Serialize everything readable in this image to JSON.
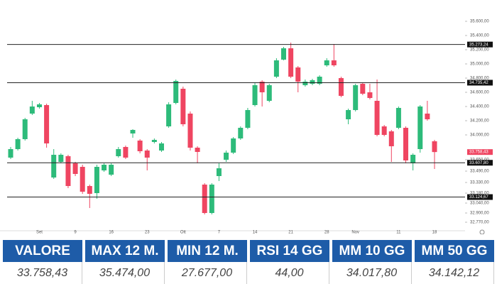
{
  "chart_data": {
    "type": "candlestick",
    "categories": [
      null,
      null,
      null,
      null,
      "Set",
      null,
      null,
      null,
      null,
      "9",
      null,
      null,
      null,
      null,
      "16",
      null,
      null,
      null,
      null,
      "23",
      null,
      null,
      null,
      null,
      "Ott",
      null,
      null,
      null,
      null,
      "7",
      null,
      null,
      null,
      null,
      "14",
      null,
      null,
      null,
      null,
      "21",
      null,
      null,
      null,
      null,
      "28",
      null,
      null,
      null,
      "Nov",
      null,
      null,
      null,
      null,
      null,
      "11",
      null,
      null,
      null,
      null,
      "18"
    ],
    "open": [
      33680,
      33800,
      33940,
      34300,
      34390,
      34420,
      33400,
      33620,
      33700,
      33600,
      33550,
      33280,
      33180,
      33500,
      33440,
      33700,
      33830,
      34020,
      33920,
      33780,
      33900,
      33780,
      34120,
      34450,
      34650,
      34300,
      33820,
      33300,
      32900,
      33420,
      33650,
      33750,
      33950,
      34100,
      34420,
      34750,
      34480,
      34820,
      35060,
      35220,
      34950,
      34700,
      34720,
      34720,
      34980,
      35050,
      34800,
      34220,
      34350,
      34720,
      34600,
      34480,
      34120,
      34050,
      34100,
      34100,
      33600,
      33800,
      34300,
      33910
    ],
    "high": [
      33830,
      33960,
      34240,
      34480,
      34450,
      34440,
      33800,
      33740,
      33720,
      33620,
      33580,
      33300,
      33580,
      33600,
      33600,
      33830,
      33850,
      34080,
      33940,
      33800,
      33950,
      33900,
      34460,
      34780,
      34680,
      34330,
      33840,
      33320,
      33320,
      33600,
      33780,
      33970,
      34120,
      34380,
      34730,
      34770,
      34720,
      35080,
      35240,
      35300,
      34970,
      34780,
      34790,
      34840,
      35080,
      35280,
      34820,
      34370,
      34720,
      34740,
      34720,
      34780,
      34140,
      34070,
      34400,
      34120,
      33740,
      34420,
      34480,
      33930
    ],
    "low": [
      33660,
      33780,
      33920,
      34280,
      34370,
      33820,
      33380,
      33600,
      33250,
      33420,
      33170,
      32970,
      33100,
      33480,
      33420,
      33680,
      33660,
      33960,
      33740,
      33500,
      33880,
      33760,
      34100,
      34430,
      34120,
      33780,
      33600,
      32880,
      32880,
      33350,
      33620,
      33730,
      33930,
      34080,
      34400,
      34400,
      34460,
      34800,
      35050,
      34800,
      34600,
      34680,
      34700,
      34700,
      34960,
      34960,
      34530,
      34150,
      34330,
      34560,
      34500,
      33980,
      33980,
      33620,
      34080,
      33600,
      33500,
      33750,
      34200,
      33520
    ],
    "close": [
      33800,
      33940,
      34220,
      34400,
      34430,
      33880,
      33720,
      33720,
      33280,
      33450,
      33200,
      33170,
      33550,
      33580,
      33580,
      33800,
      33680,
      34070,
      33770,
      33680,
      33930,
      33880,
      34430,
      34760,
      34150,
      33820,
      33760,
      32900,
      33300,
      33530,
      33750,
      33950,
      34100,
      34350,
      34700,
      34600,
      34700,
      35050,
      35220,
      34820,
      34750,
      34750,
      34770,
      34820,
      35050,
      34980,
      34550,
      34350,
      34700,
      34580,
      34520,
      34000,
      34000,
      33840,
      34380,
      33640,
      33720,
      34400,
      34220,
      33758.43
    ],
    "up_color": "#2dbb7a",
    "down_color": "#ef4561",
    "ylim": [
      32650,
      35900
    ],
    "yticks": [
      {
        "value": 35600,
        "label": "35.600,00"
      },
      {
        "value": 35400,
        "label": "35.400,00"
      },
      {
        "value": 35200,
        "label": "35.200,00"
      },
      {
        "value": 35000,
        "label": "35.000,00"
      },
      {
        "value": 34800,
        "label": "34.800,00"
      },
      {
        "value": 34600,
        "label": "34.600,00"
      },
      {
        "value": 34400,
        "label": "34.400,00"
      },
      {
        "value": 34200,
        "label": "34.200,00"
      },
      {
        "value": 34000,
        "label": "34.000,00"
      },
      {
        "value": 33650,
        "label": "33.650,00"
      },
      {
        "value": 33490,
        "label": "33.490,00"
      },
      {
        "value": 33330,
        "label": "33.330,00"
      },
      {
        "value": 33180,
        "label": "33.180,00"
      },
      {
        "value": 33040,
        "label": "33.040,00"
      },
      {
        "value": 32900,
        "label": "32.900,00"
      },
      {
        "value": 32770,
        "label": "32.770,00"
      }
    ],
    "levels": [
      {
        "value": 35273.24,
        "label": "35.273,24"
      },
      {
        "value": 34735.42,
        "label": "34.735,42"
      },
      {
        "value": 33607.8,
        "label": "33.607,80"
      },
      {
        "value": 33124.67,
        "label": "33.124,67"
      }
    ],
    "last_price": {
      "value": 33758.43,
      "label": "33.758,43"
    }
  },
  "table": {
    "headers": [
      "VALORE",
      "MAX 12 M.",
      "MIN 12 M.",
      "RSI 14 GG",
      "MM 10 GG",
      "MM 50 GG"
    ],
    "rows": [
      [
        "33.758,43",
        "35.474,00",
        "27.677,00",
        "44,00",
        "34.017,80",
        "34.142,12"
      ]
    ]
  }
}
